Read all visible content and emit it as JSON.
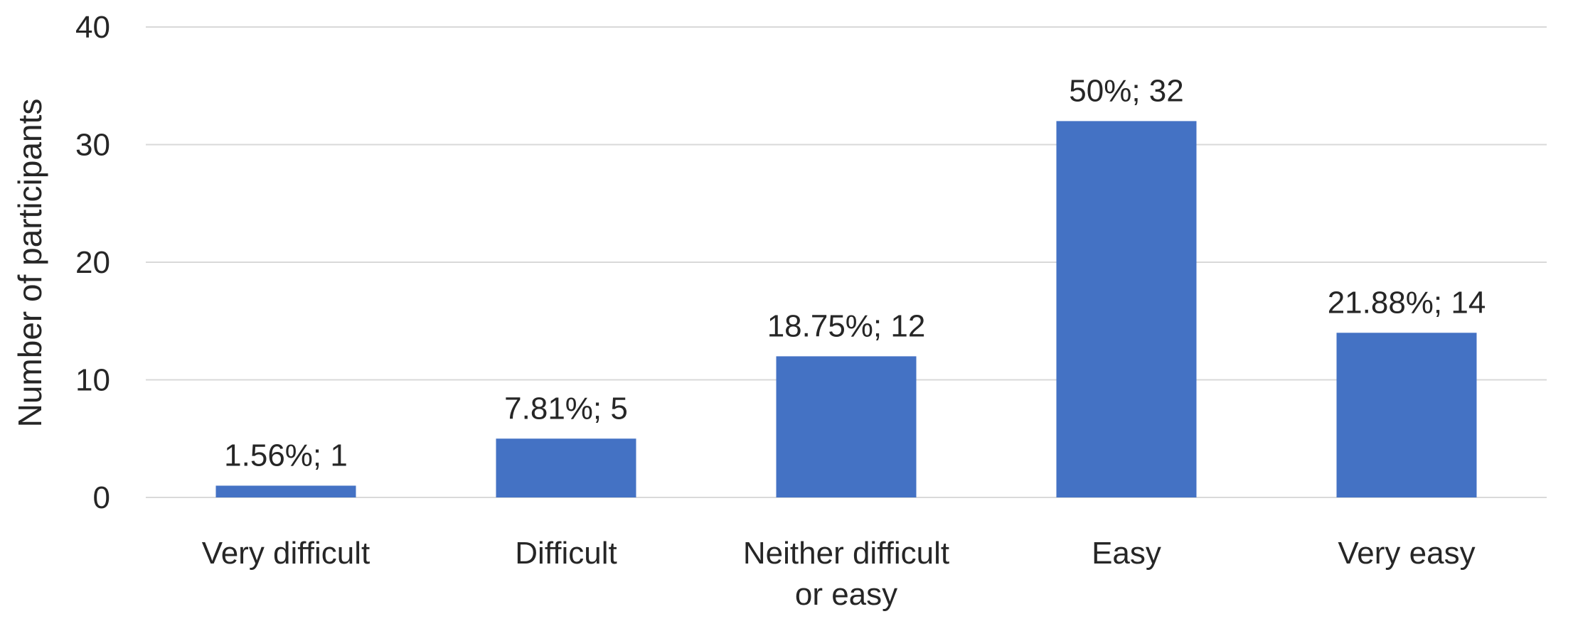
{
  "chart_data": {
    "type": "bar",
    "title": "",
    "xlabel": "",
    "ylabel": "Number of participants",
    "ylim": [
      0,
      40
    ],
    "yticks": [
      0,
      10,
      20,
      30,
      40
    ],
    "categories": [
      [
        "Very difficult"
      ],
      [
        "Difficult"
      ],
      [
        "Neither difficult",
        "or easy"
      ],
      [
        "Easy"
      ],
      [
        "Very easy"
      ]
    ],
    "values": [
      1,
      5,
      12,
      32,
      14
    ],
    "data_labels": [
      "1.56%; 1",
      "7.81%; 5",
      "18.75%; 12",
      "50%; 32",
      "21.88%; 14"
    ],
    "bar_color": "#4472c4",
    "grid": true,
    "legend": "none"
  }
}
